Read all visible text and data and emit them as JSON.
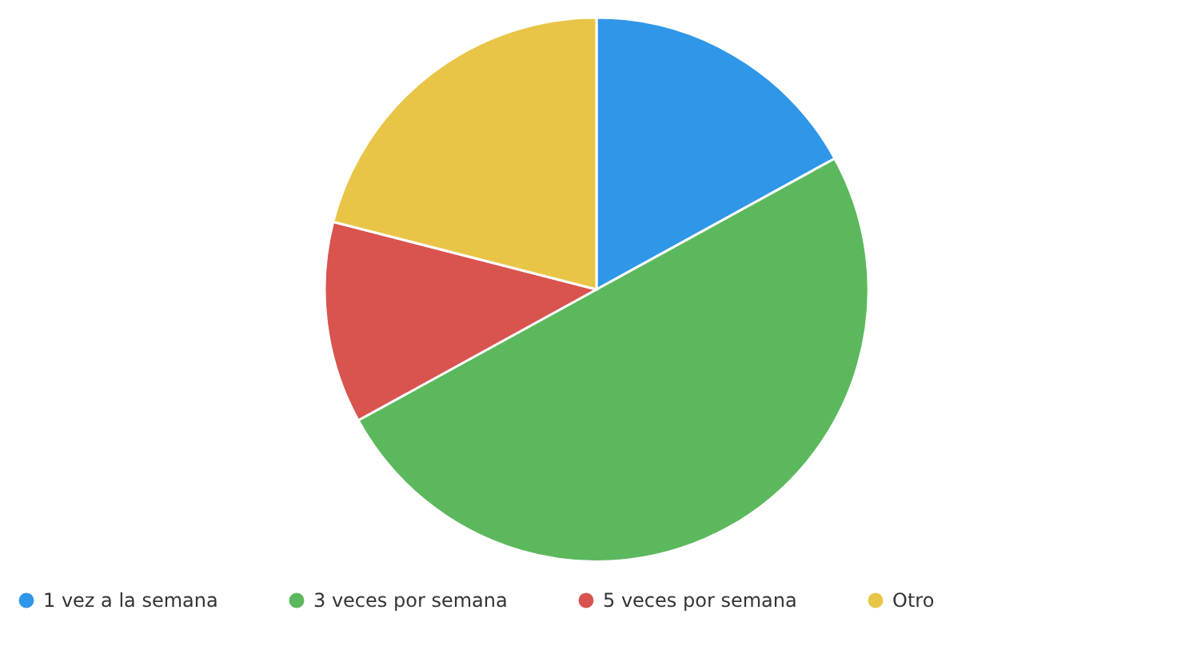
{
  "chart_data": {
    "type": "pie",
    "categories": [
      "1 vez a la semana",
      "3 veces por semana",
      "5 veces por semana",
      "Otro"
    ],
    "values": [
      17,
      50,
      12,
      21
    ],
    "colors": [
      "#2f96e8",
      "#5cb85c",
      "#d9534f",
      "#e8c547"
    ],
    "legend": "bottom"
  }
}
